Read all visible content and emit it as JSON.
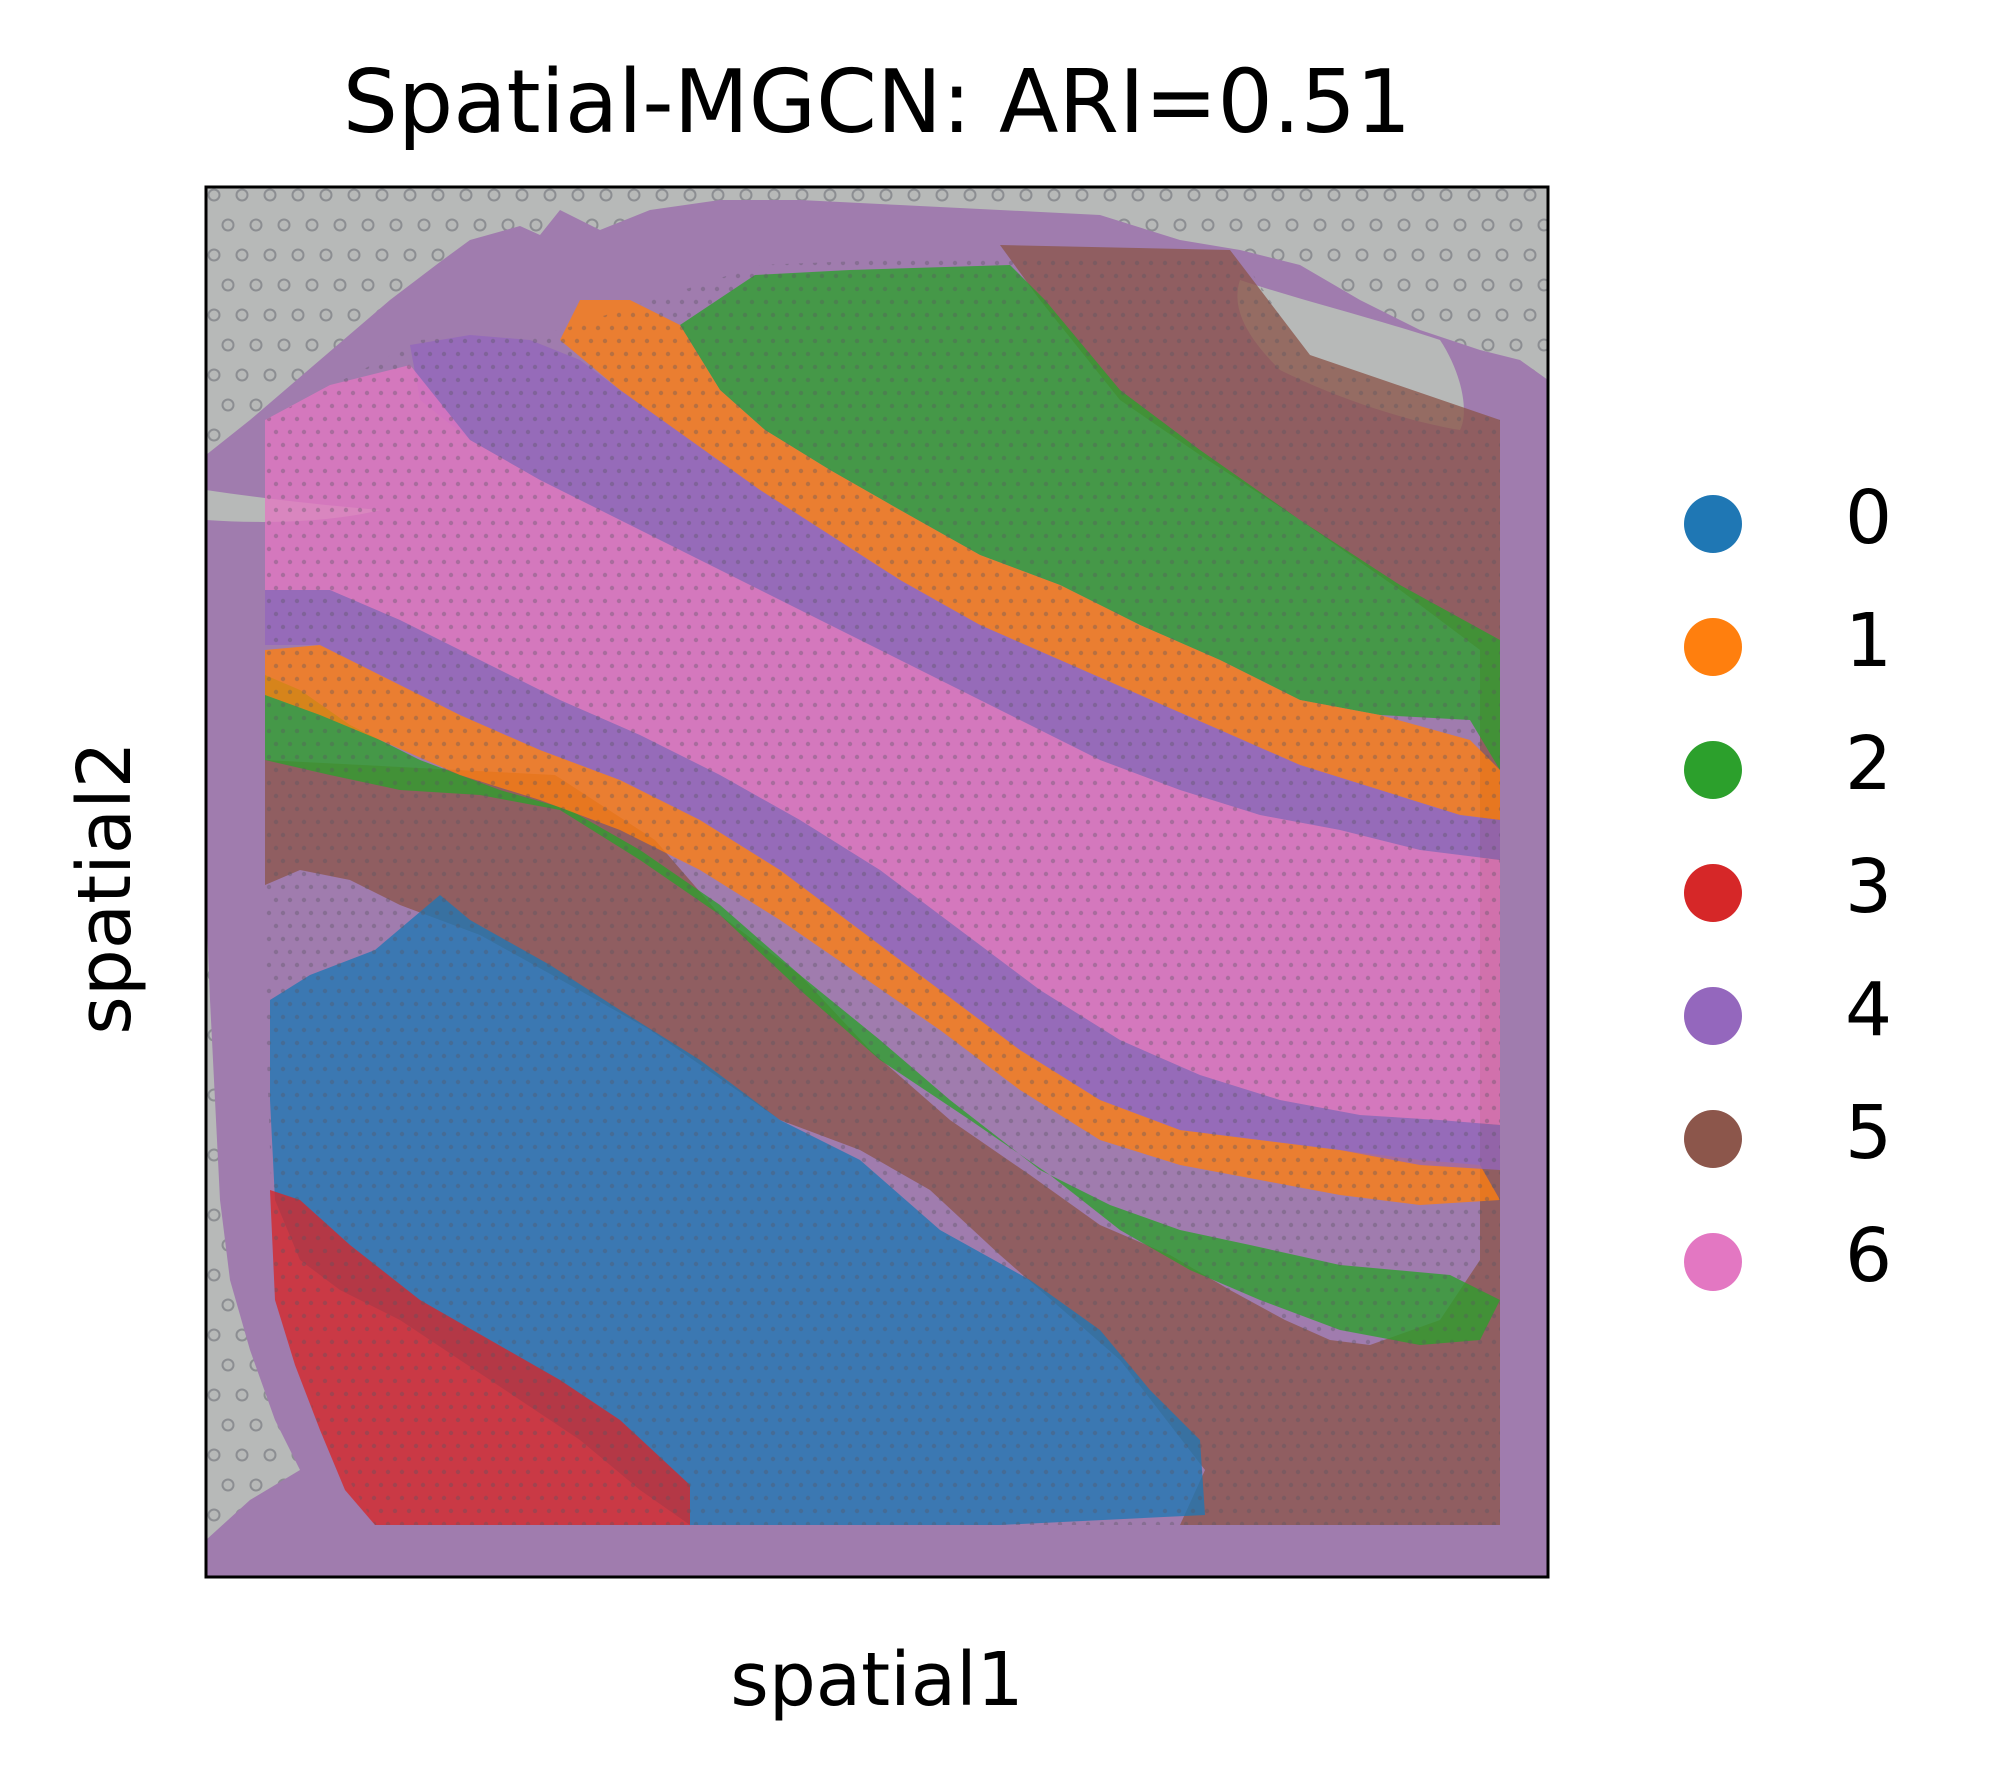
{
  "chart_data": {
    "type": "scatter",
    "title": "Spatial-MGCN: ARI=0.51",
    "xlabel": "spatial1",
    "ylabel": "spatial2",
    "grid": false,
    "ticks": "none",
    "legend_position": "right",
    "background": "H&E tissue image",
    "series": [
      {
        "name": "0",
        "color": "#1f77b4"
      },
      {
        "name": "1",
        "color": "#ff7f0e"
      },
      {
        "name": "2",
        "color": "#2ca02c"
      },
      {
        "name": "3",
        "color": "#d62728"
      },
      {
        "name": "4",
        "color": "#9467bd"
      },
      {
        "name": "5",
        "color": "#8c564b"
      },
      {
        "name": "6",
        "color": "#e377c2"
      }
    ]
  },
  "colors": {
    "tissue": "#a07cae",
    "glass": "#b7b9b8"
  }
}
